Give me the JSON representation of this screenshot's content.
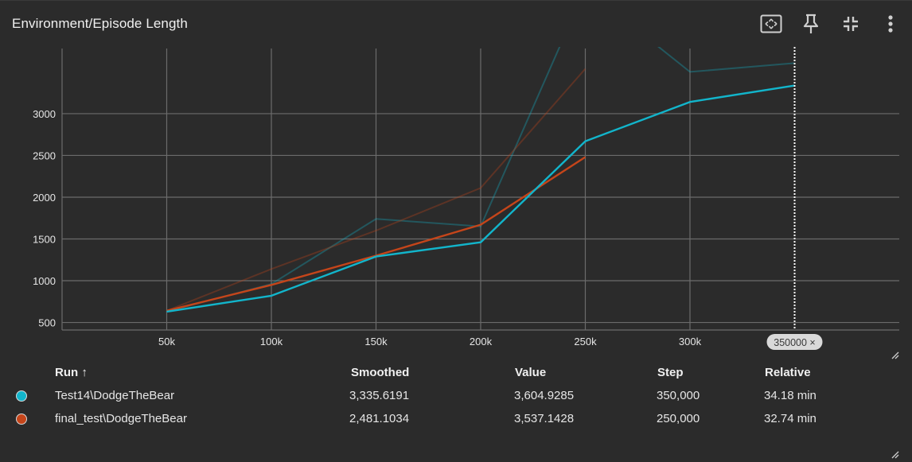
{
  "header": {
    "title": "Environment/Episode Length",
    "icons": [
      "fit-domain-icon",
      "pin-icon",
      "collapse-icon",
      "more-vert-icon"
    ]
  },
  "colors": {
    "background": "#2b2b2b",
    "grid": "#6b6b6b",
    "test14": "#12b5cb",
    "final_test": "#c5451a"
  },
  "chart_data": {
    "type": "line",
    "x_ticks": [
      "50k",
      "100k",
      "150k",
      "200k",
      "250k",
      "300k"
    ],
    "x_tick_values": [
      50000,
      100000,
      150000,
      200000,
      250000,
      300000
    ],
    "y_ticks": [
      "500",
      "1000",
      "1500",
      "2000",
      "2500",
      "3000"
    ],
    "y_tick_values": [
      500,
      1000,
      1500,
      2000,
      2500,
      3000
    ],
    "xlim": [
      0,
      400000
    ],
    "ylim": [
      410,
      3780
    ],
    "hover_step": 350000,
    "hover_label": "350000 ×",
    "series": [
      {
        "name": "Test14\\DodgeTheBear",
        "color": "#12b5cb",
        "smoothed": [
          [
            50000,
            630
          ],
          [
            100000,
            820
          ],
          [
            150000,
            1290
          ],
          [
            200000,
            1460
          ],
          [
            250000,
            2670
          ],
          [
            300000,
            3140
          ],
          [
            350000,
            3336
          ]
        ],
        "raw": [
          [
            50000,
            630
          ],
          [
            100000,
            960
          ],
          [
            150000,
            1740
          ],
          [
            200000,
            1650
          ],
          [
            250000,
            4500
          ],
          [
            300000,
            3500
          ],
          [
            350000,
            3605
          ]
        ]
      },
      {
        "name": "final_test\\DodgeTheBear",
        "color": "#c5451a",
        "smoothed": [
          [
            50000,
            640
          ],
          [
            100000,
            950
          ],
          [
            150000,
            1300
          ],
          [
            200000,
            1670
          ],
          [
            250000,
            2481
          ]
        ],
        "raw": [
          [
            50000,
            640
          ],
          [
            100000,
            1140
          ],
          [
            150000,
            1600
          ],
          [
            200000,
            2110
          ],
          [
            250000,
            3537
          ]
        ]
      }
    ]
  },
  "table": {
    "headers": {
      "run": "Run ↑",
      "smoothed": "Smoothed",
      "value": "Value",
      "step": "Step",
      "relative": "Relative"
    },
    "rows": [
      {
        "run": "Test14\\DodgeTheBear",
        "smoothed": "3,335.6191",
        "value": "3,604.9285",
        "step": "350,000",
        "relative": "34.18 min",
        "color": "#12b5cb"
      },
      {
        "run": "final_test\\DodgeTheBear",
        "smoothed": "2,481.1034",
        "value": "3,537.1428",
        "step": "250,000",
        "relative": "32.74 min",
        "color": "#c5451a"
      }
    ]
  }
}
